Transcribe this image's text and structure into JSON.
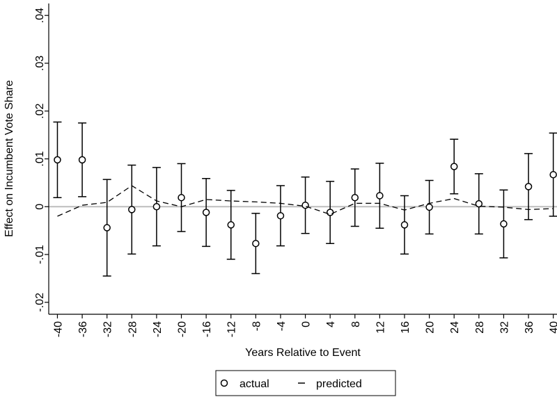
{
  "chart_data": {
    "type": "scatter",
    "x_label": "Years Relative to Event",
    "y_label": "Effect on Incumbent Vote Share",
    "x": [
      -40,
      -36,
      -32,
      -28,
      -24,
      -20,
      -16,
      -12,
      -8,
      -4,
      0,
      4,
      8,
      12,
      16,
      20,
      24,
      28,
      32,
      36,
      40
    ],
    "xlim": [
      -41.4,
      40.6
    ],
    "xticks": [
      -40,
      -36,
      -32,
      -28,
      -24,
      -20,
      -16,
      -12,
      -8,
      -4,
      0,
      4,
      8,
      12,
      16,
      20,
      24,
      28,
      32,
      36,
      40
    ],
    "ylim": [
      -0.0225,
      0.0425
    ],
    "yticks": [
      {
        "value": -0.02,
        "label": "-.02"
      },
      {
        "value": -0.01,
        "label": "-.01"
      },
      0,
      {
        "value": 0.01,
        "label": ".01"
      },
      {
        "value": 0.02,
        "label": ".02"
      },
      {
        "value": 0.03,
        "label": ".03"
      },
      {
        "value": 0.04,
        "label": ".04"
      }
    ],
    "reference_line": 0,
    "series": [
      {
        "name": "actual",
        "color": "#000000",
        "marker": "circle",
        "values": [
          0.0098,
          0.0098,
          -0.0044,
          -0.0006,
          0,
          0.0019,
          -0.0012,
          -0.0038,
          -0.0077,
          -0.0019,
          0.0003,
          -0.0012,
          0.0019,
          0.0023,
          -0.0038,
          -0.0001,
          0.0084,
          0.0006,
          -0.0036,
          0.0042,
          0.0067
        ],
        "errors": [
          0.0079,
          0.0077,
          0.0101,
          0.0093,
          0.0082,
          0.0071,
          0.0071,
          0.0072,
          0.0063,
          0.0063,
          0.0059,
          0.0065,
          0.006,
          0.0068,
          0.0061,
          0.0056,
          0.0057,
          0.0063,
          0.0071,
          0.0069,
          0.0087
        ]
      },
      {
        "name": "predicted",
        "color": "#000000",
        "marker": "dashed-line",
        "values": [
          -0.002,
          0.0003,
          0.0009,
          0.0044,
          0.0012,
          0,
          0.0015,
          0.0012,
          0.001,
          0.0007,
          0.0001,
          -0.0016,
          0.0007,
          0.0007,
          -0.0007,
          0.0007,
          0.0017,
          0.0001,
          -0.0001,
          -0.0006,
          -0.0004
        ]
      }
    ]
  }
}
